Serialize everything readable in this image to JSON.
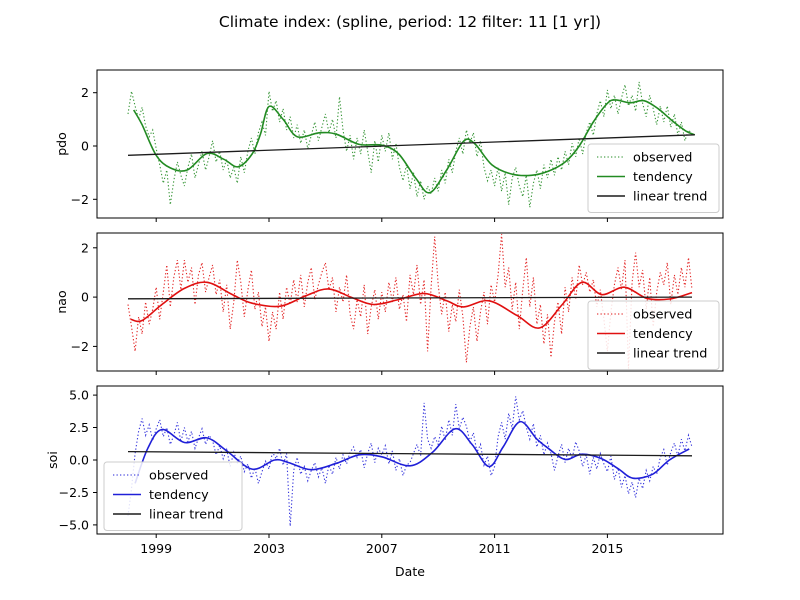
{
  "figure": {
    "title": "Climate index: (spline, period: 12 filter: 11 [1 yr])",
    "xlabel": "Date",
    "x_tick_labels": [
      "1999",
      "2003",
      "2007",
      "2011",
      "2015"
    ],
    "x_ticks": [
      1999,
      2003,
      2007,
      2011,
      2015
    ],
    "x_range": [
      1996.9,
      2019.1
    ],
    "background_color": "#ffffff",
    "spine_color": "#000000",
    "trend_color": "#1c1c1c"
  },
  "legend": {
    "labels": [
      "observed",
      "tendency",
      "linear trend"
    ]
  },
  "chart_data": [
    {
      "type": "line",
      "ylabel": "pdo",
      "color": "#228B22",
      "y_ticks": [
        2,
        0,
        -2
      ],
      "y_tick_labels": [
        "2",
        "0",
        "−2"
      ],
      "y_range": [
        -2.7,
        2.85
      ],
      "legend_position": "lower right",
      "observed": {
        "start": 1998.0,
        "step": 0.125,
        "values": [
          1.2,
          2.05,
          1.5,
          1.0,
          1.45,
          0.75,
          0.35,
          0.6,
          -0.1,
          -0.7,
          -1.4,
          -0.9,
          -2.2,
          -1.3,
          -0.6,
          -1.1,
          -1.5,
          -0.8,
          -0.3,
          -1.2,
          -0.7,
          -0.2,
          -0.9,
          -0.4,
          0.2,
          -0.6,
          -0.2,
          -0.9,
          -0.5,
          -1.2,
          -0.8,
          -1.4,
          -0.4,
          -1.0,
          -0.2,
          0.3,
          -0.3,
          0.5,
          0.9,
          0.4,
          2.05,
          1.3,
          1.7,
          0.9,
          1.4,
          0.6,
          1.1,
          0.3,
          0.8,
          0.1,
          0.6,
          -0.1,
          0.4,
          0.9,
          0.2,
          0.7,
          1.2,
          0.5,
          1.0,
          0.3,
          1.85,
          0.6,
          -0.2,
          0.4,
          -0.5,
          0.3,
          -0.3,
          0.6,
          -0.2,
          -1.0,
          0.2,
          -0.6,
          0.4,
          -0.2,
          0.5,
          -0.5,
          0.1,
          -0.8,
          -1.3,
          -0.7,
          -1.6,
          -1.0,
          -1.9,
          -1.3,
          -2.0,
          -1.5,
          -1.8,
          -1.2,
          -1.7,
          -0.9,
          -1.4,
          -0.5,
          -1.0,
          -0.2,
          0.3,
          -0.3,
          0.6,
          0.1,
          0.5,
          -0.4,
          0.2,
          -0.8,
          -1.3,
          -0.9,
          -1.5,
          -0.8,
          -1.7,
          -1.0,
          -2.2,
          -1.2,
          -0.8,
          -1.5,
          -1.9,
          -1.1,
          -2.3,
          -1.4,
          -0.9,
          -1.6,
          -0.7,
          -1.2,
          -0.5,
          -1.1,
          -0.4,
          -0.9,
          -0.2,
          -0.7,
          0.1,
          -0.4,
          0.3,
          -0.3,
          0.5,
          0.9,
          0.4,
          1.2,
          1.7,
          1.1,
          2.1,
          1.4,
          1.9,
          1.2,
          1.8,
          2.3,
          1.5,
          1.9,
          1.3,
          2.4,
          1.6,
          1.1,
          1.9,
          1.4,
          0.8,
          1.5,
          0.9,
          1.5,
          0.7,
          1.2,
          0.4,
          0.9,
          0.2,
          0.6,
          0.45
        ]
      },
      "tendency": [
        [
          1998.2,
          1.35
        ],
        [
          1998.5,
          0.8
        ],
        [
          1999.0,
          -0.35
        ],
        [
          1999.5,
          -0.82
        ],
        [
          2000.1,
          -0.9
        ],
        [
          2000.8,
          -0.28
        ],
        [
          2001.4,
          -0.5
        ],
        [
          2001.9,
          -0.78
        ],
        [
          2002.4,
          -0.3
        ],
        [
          2002.7,
          0.45
        ],
        [
          2003.0,
          1.48
        ],
        [
          2003.5,
          1.0
        ],
        [
          2004.0,
          0.35
        ],
        [
          2004.8,
          0.5
        ],
        [
          2005.4,
          0.44
        ],
        [
          2006.2,
          0.06
        ],
        [
          2007.0,
          0.03
        ],
        [
          2007.6,
          -0.3
        ],
        [
          2008.2,
          -1.2
        ],
        [
          2008.7,
          -1.75
        ],
        [
          2009.3,
          -0.9
        ],
        [
          2009.9,
          0.18
        ],
        [
          2010.3,
          0.08
        ],
        [
          2010.9,
          -0.7
        ],
        [
          2011.6,
          -1.05
        ],
        [
          2012.3,
          -1.1
        ],
        [
          2012.9,
          -0.95
        ],
        [
          2013.5,
          -0.6
        ],
        [
          2014.0,
          0.0
        ],
        [
          2014.5,
          0.9
        ],
        [
          2015.0,
          1.6
        ],
        [
          2015.3,
          1.73
        ],
        [
          2015.8,
          1.62
        ],
        [
          2016.3,
          1.7
        ],
        [
          2016.8,
          1.4
        ],
        [
          2017.3,
          0.95
        ],
        [
          2017.8,
          0.55
        ],
        [
          2018.1,
          0.42
        ]
      ],
      "linear_trend": {
        "x": [
          1998.0,
          2018.1
        ],
        "y": [
          -0.35,
          0.42
        ]
      }
    },
    {
      "type": "line",
      "ylabel": "nao",
      "color": "#e01010",
      "y_ticks": [
        2,
        0,
        -2
      ],
      "y_tick_labels": [
        "2",
        "0",
        "−2"
      ],
      "y_range": [
        -3.0,
        2.6
      ],
      "legend_position": "lower right",
      "observed": {
        "start": 1998.0,
        "step": 0.125,
        "values": [
          -0.3,
          -1.2,
          -2.2,
          -0.8,
          -1.5,
          -0.2,
          -1.1,
          -0.5,
          0.4,
          -0.9,
          0.2,
          1.3,
          -0.4,
          0.8,
          1.5,
          0.3,
          1.5,
          0.6,
          1.2,
          -0.3,
          0.9,
          1.4,
          0.2,
          0.8,
          1.3,
          0.1,
          0.7,
          -0.6,
          0.5,
          -1.3,
          -0.2,
          1.5,
          0.6,
          -0.8,
          0.3,
          1.1,
          -0.5,
          0.2,
          -1.2,
          -0.4,
          -1.8,
          -0.6,
          -1.3,
          0.2,
          -0.9,
          0.4,
          -0.3,
          0.7,
          -0.2,
          0.9,
          -0.4,
          0.6,
          1.2,
          -0.1,
          0.5,
          1.0,
          1.4,
          0.3,
          0.8,
          -0.6,
          0.4,
          -0.2,
          0.9,
          -0.7,
          -1.3,
          -0.1,
          -0.8,
          0.5,
          -1.5,
          -0.4,
          0.3,
          -0.9,
          0.2,
          -0.6,
          0.6,
          -0.2,
          0.8,
          -0.5,
          0.1,
          -1.0,
          0.9,
          0.1,
          1.3,
          -0.3,
          0.7,
          -2.2,
          0.4,
          2.45,
          0.5,
          -0.7,
          0.2,
          -1.4,
          -0.3,
          -1.0,
          0.3,
          -0.8,
          -2.65,
          -1.2,
          -0.4,
          -1.8,
          -0.6,
          0.2,
          -1.1,
          0.5,
          -0.2,
          0.9,
          2.55,
          0.4,
          1.2,
          -0.5,
          0.6,
          -1.3,
          0.3,
          1.6,
          -0.4,
          0.8,
          -1.1,
          -0.3,
          -1.9,
          -0.7,
          -2.45,
          -1.0,
          -0.2,
          -1.5,
          0.4,
          -0.6,
          0.8,
          -0.1,
          1.3,
          0.5,
          1.0,
          0.2,
          0.7,
          -0.4,
          0.3,
          -0.9,
          -2.2,
          -0.6,
          0.5,
          1.2,
          0.3,
          1.5,
          -2.9,
          0.6,
          1.8,
          0.4,
          1.1,
          -0.5,
          0.8,
          -1.2,
          0.2,
          1.0,
          0.5,
          1.4,
          -0.3,
          0.9,
          0.1,
          1.2,
          0.4,
          1.6,
          0.3
        ]
      },
      "tendency": [
        [
          1998.1,
          -0.9
        ],
        [
          1998.5,
          -0.95
        ],
        [
          1999.2,
          -0.3
        ],
        [
          2000.0,
          0.35
        ],
        [
          2000.8,
          0.6
        ],
        [
          2001.7,
          0.1
        ],
        [
          2002.4,
          -0.25
        ],
        [
          2003.4,
          -0.37
        ],
        [
          2004.3,
          0.05
        ],
        [
          2005.1,
          0.33
        ],
        [
          2005.9,
          0.0
        ],
        [
          2006.7,
          -0.3
        ],
        [
          2007.6,
          -0.1
        ],
        [
          2008.5,
          0.15
        ],
        [
          2009.3,
          -0.15
        ],
        [
          2009.9,
          -0.4
        ],
        [
          2010.8,
          -0.15
        ],
        [
          2011.8,
          -0.75
        ],
        [
          2012.6,
          -1.25
        ],
        [
          2013.4,
          -0.3
        ],
        [
          2014.1,
          0.6
        ],
        [
          2014.8,
          0.1
        ],
        [
          2015.6,
          0.4
        ],
        [
          2016.4,
          -0.05
        ],
        [
          2017.2,
          -0.08
        ],
        [
          2018.0,
          0.18
        ]
      ],
      "linear_trend": {
        "x": [
          1998.0,
          2018.0
        ],
        "y": [
          -0.07,
          0.0
        ]
      }
    },
    {
      "type": "line",
      "ylabel": "soi",
      "color": "#2020d8",
      "y_ticks": [
        5.0,
        2.5,
        0.0,
        -2.5,
        -5.0
      ],
      "y_tick_labels": [
        "5.0",
        "2.5",
        "0.0",
        "−2.5",
        "−5.0"
      ],
      "y_range": [
        -5.7,
        5.7
      ],
      "legend_position": "lower left",
      "observed": {
        "start": 1998.0,
        "step": 0.125,
        "values": [
          -4.3,
          -2.2,
          0.5,
          2.2,
          3.2,
          1.9,
          2.7,
          1.5,
          2.4,
          3.1,
          1.8,
          2.5,
          1.2,
          1.9,
          2.9,
          1.4,
          2.5,
          1.4,
          2.2,
          0.9,
          1.7,
          2.4,
          1.2,
          1.9,
          1.5,
          0.4,
          1.1,
          0.1,
          0.8,
          -0.5,
          0.6,
          -0.2,
          0.3,
          -0.9,
          -0.3,
          -1.4,
          -0.6,
          -1.8,
          -0.9,
          -0.1,
          -0.7,
          0.6,
          0.1,
          0.9,
          -0.4,
          0.5,
          -5.1,
          -0.8,
          0.2,
          -1.1,
          -0.5,
          -1.6,
          -0.8,
          -0.2,
          -1.3,
          -0.6,
          -1.8,
          -0.4,
          -1.1,
          0.2,
          -0.7,
          0.4,
          -0.3,
          0.6,
          1.0,
          0.2,
          0.8,
          -0.6,
          0.5,
          1.3,
          -0.2,
          0.9,
          0.4,
          1.1,
          -0.3,
          0.7,
          -0.8,
          0.1,
          -1.2,
          -0.4,
          -0.2,
          0.5,
          1.2,
          0.3,
          4.4,
          1.6,
          0.9,
          1.8,
          1.2,
          2.6,
          1.5,
          3.1,
          1.9,
          4.3,
          2.4,
          3.3,
          2.6,
          1.4,
          2.1,
          0.6,
          1.2,
          -0.4,
          0.3,
          -1.2,
          -0.5,
          1.8,
          2.9,
          1.6,
          3.6,
          2.4,
          4.9,
          3.1,
          3.8,
          2.5,
          1.6,
          2.8,
          1.0,
          1.9,
          0.4,
          1.3,
          0.5,
          -0.8,
          0.3,
          1.2,
          -0.2,
          0.9,
          0.1,
          1.4,
          0.7,
          -0.5,
          0.4,
          -1.1,
          0.2,
          -0.7,
          0.5,
          -0.3,
          -0.9,
          0.3,
          -1.5,
          -0.6,
          -2.1,
          -1.2,
          -2.6,
          -1.7,
          -2.9,
          -1.4,
          -2.2,
          -0.8,
          -1.6,
          -0.5,
          -1.1,
          0.2,
          0.8,
          -0.4,
          0.6,
          1.3,
          0.3,
          1.6,
          0.7,
          1.9,
          1.0
        ]
      },
      "tendency": [
        [
          1998.25,
          -1.8
        ],
        [
          1998.7,
          0.9
        ],
        [
          1999.2,
          2.35
        ],
        [
          2000.0,
          1.35
        ],
        [
          2000.8,
          1.7
        ],
        [
          2001.5,
          0.7
        ],
        [
          2002.4,
          -0.7
        ],
        [
          2003.2,
          0.0
        ],
        [
          2003.7,
          -0.2
        ],
        [
          2004.5,
          -0.75
        ],
        [
          2005.4,
          -0.25
        ],
        [
          2006.2,
          0.4
        ],
        [
          2007.0,
          0.25
        ],
        [
          2008.0,
          -0.45
        ],
        [
          2008.8,
          0.6
        ],
        [
          2009.6,
          2.4
        ],
        [
          2010.2,
          1.2
        ],
        [
          2010.8,
          -0.5
        ],
        [
          2011.3,
          1.0
        ],
        [
          2011.9,
          2.95
        ],
        [
          2012.5,
          1.6
        ],
        [
          2012.9,
          0.9
        ],
        [
          2013.5,
          0.05
        ],
        [
          2014.1,
          0.45
        ],
        [
          2014.8,
          0.1
        ],
        [
          2015.4,
          -0.7
        ],
        [
          2015.9,
          -1.4
        ],
        [
          2016.6,
          -1.1
        ],
        [
          2017.2,
          0.0
        ],
        [
          2017.9,
          0.85
        ]
      ],
      "linear_trend": {
        "x": [
          1998.0,
          2018.0
        ],
        "y": [
          0.65,
          0.32
        ]
      }
    }
  ]
}
